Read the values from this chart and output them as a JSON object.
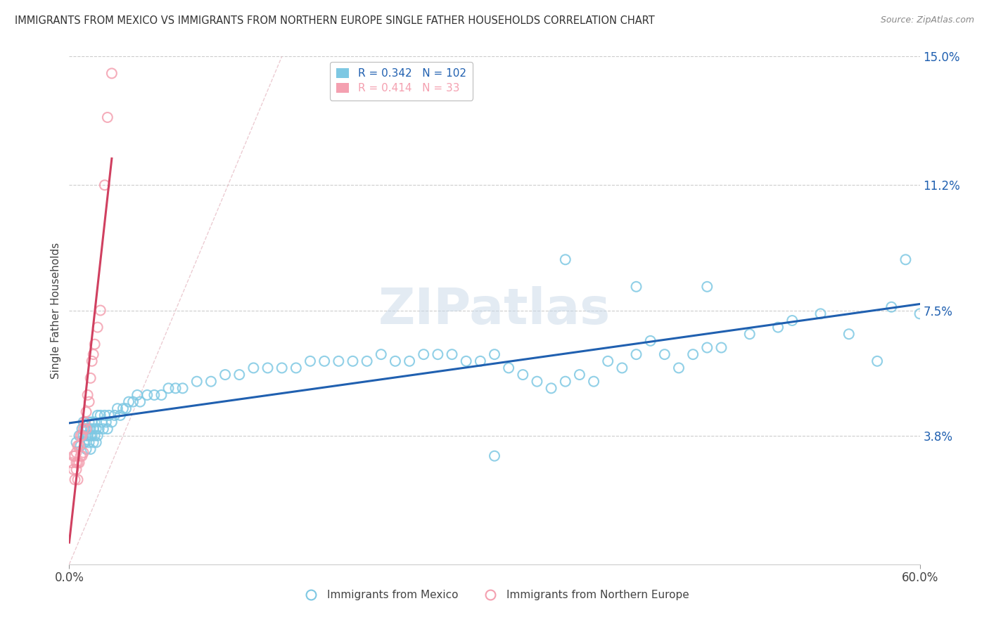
{
  "title": "IMMIGRANTS FROM MEXICO VS IMMIGRANTS FROM NORTHERN EUROPE SINGLE FATHER HOUSEHOLDS CORRELATION CHART",
  "source": "Source: ZipAtlas.com",
  "ylabel": "Single Father Households",
  "xlim": [
    0.0,
    0.6
  ],
  "ylim": [
    0.0,
    0.15
  ],
  "yticks": [
    0.038,
    0.075,
    0.112,
    0.15
  ],
  "ytick_labels": [
    "3.8%",
    "7.5%",
    "11.2%",
    "15.0%"
  ],
  "xticks": [
    0.0,
    0.6
  ],
  "xtick_labels": [
    "0.0%",
    "60.0%"
  ],
  "r_mexico": 0.342,
  "n_mexico": 102,
  "r_northern": 0.414,
  "n_northern": 33,
  "color_mexico": "#7ec8e3",
  "color_northern": "#f4a0b0",
  "trendline_color_mexico": "#2060b0",
  "trendline_color_northern": "#d04060",
  "diagonal_color": "#e8c0c8",
  "watermark": "ZIPatlas",
  "legend_label_mexico": "Immigrants from Mexico",
  "legend_label_northern": "Immigrants from Northern Europe",
  "mexico_x": [
    0.005,
    0.007,
    0.008,
    0.009,
    0.01,
    0.01,
    0.011,
    0.011,
    0.012,
    0.012,
    0.013,
    0.013,
    0.014,
    0.014,
    0.015,
    0.015,
    0.015,
    0.016,
    0.016,
    0.017,
    0.017,
    0.018,
    0.018,
    0.019,
    0.019,
    0.02,
    0.02,
    0.021,
    0.022,
    0.023,
    0.024,
    0.025,
    0.026,
    0.027,
    0.028,
    0.03,
    0.032,
    0.034,
    0.036,
    0.038,
    0.04,
    0.042,
    0.045,
    0.048,
    0.05,
    0.055,
    0.06,
    0.065,
    0.07,
    0.075,
    0.08,
    0.09,
    0.1,
    0.11,
    0.12,
    0.13,
    0.14,
    0.15,
    0.16,
    0.17,
    0.18,
    0.19,
    0.2,
    0.21,
    0.22,
    0.23,
    0.24,
    0.25,
    0.26,
    0.27,
    0.28,
    0.29,
    0.3,
    0.31,
    0.32,
    0.33,
    0.34,
    0.35,
    0.36,
    0.37,
    0.38,
    0.39,
    0.4,
    0.41,
    0.42,
    0.43,
    0.44,
    0.45,
    0.46,
    0.48,
    0.5,
    0.51,
    0.53,
    0.55,
    0.57,
    0.58,
    0.59,
    0.6,
    0.35,
    0.45,
    0.4,
    0.3
  ],
  "mexico_y": [
    0.036,
    0.038,
    0.035,
    0.04,
    0.038,
    0.042,
    0.036,
    0.04,
    0.038,
    0.034,
    0.04,
    0.038,
    0.042,
    0.036,
    0.04,
    0.038,
    0.034,
    0.042,
    0.038,
    0.04,
    0.036,
    0.042,
    0.038,
    0.04,
    0.036,
    0.044,
    0.038,
    0.04,
    0.044,
    0.042,
    0.04,
    0.044,
    0.042,
    0.04,
    0.044,
    0.042,
    0.044,
    0.046,
    0.044,
    0.046,
    0.046,
    0.048,
    0.048,
    0.05,
    0.048,
    0.05,
    0.05,
    0.05,
    0.052,
    0.052,
    0.052,
    0.054,
    0.054,
    0.056,
    0.056,
    0.058,
    0.058,
    0.058,
    0.058,
    0.06,
    0.06,
    0.06,
    0.06,
    0.06,
    0.062,
    0.06,
    0.06,
    0.062,
    0.062,
    0.062,
    0.06,
    0.06,
    0.062,
    0.058,
    0.056,
    0.054,
    0.052,
    0.054,
    0.056,
    0.054,
    0.06,
    0.058,
    0.062,
    0.066,
    0.062,
    0.058,
    0.062,
    0.064,
    0.064,
    0.068,
    0.07,
    0.072,
    0.074,
    0.068,
    0.06,
    0.076,
    0.09,
    0.074,
    0.09,
    0.082,
    0.082,
    0.032
  ],
  "northern_x": [
    0.002,
    0.003,
    0.003,
    0.004,
    0.004,
    0.005,
    0.005,
    0.005,
    0.006,
    0.006,
    0.006,
    0.007,
    0.007,
    0.008,
    0.008,
    0.009,
    0.009,
    0.01,
    0.01,
    0.011,
    0.012,
    0.012,
    0.013,
    0.014,
    0.015,
    0.016,
    0.017,
    0.018,
    0.02,
    0.022,
    0.025,
    0.027,
    0.03
  ],
  "northern_y": [
    0.03,
    0.028,
    0.032,
    0.032,
    0.025,
    0.033,
    0.03,
    0.028,
    0.035,
    0.03,
    0.025,
    0.035,
    0.03,
    0.038,
    0.032,
    0.038,
    0.032,
    0.04,
    0.033,
    0.042,
    0.045,
    0.04,
    0.05,
    0.048,
    0.055,
    0.06,
    0.062,
    0.065,
    0.07,
    0.075,
    0.112,
    0.132,
    0.145
  ]
}
